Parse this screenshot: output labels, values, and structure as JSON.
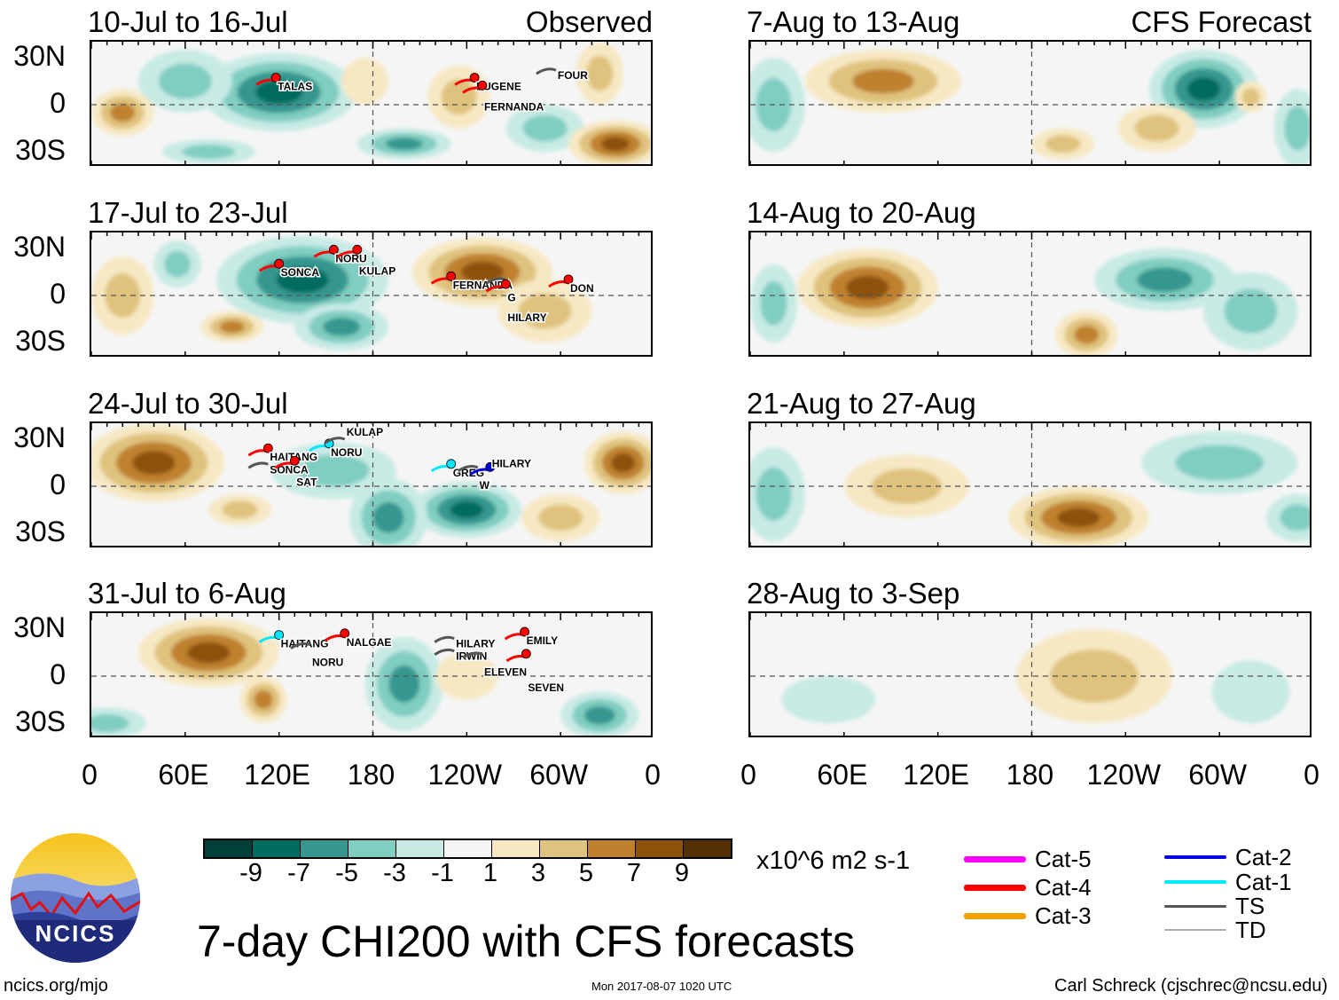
{
  "panels": [
    {
      "id": "p1",
      "title": "10-Jul to 16-Jul",
      "tag": "Observed",
      "storms": [
        {
          "name": "TALAS",
          "lon": 118,
          "lat": 15,
          "cat": 4
        },
        {
          "name": "EUGENE",
          "lon": 245,
          "lat": 15,
          "cat": 4
        },
        {
          "name": "FERNANDA",
          "lon": 250,
          "lat": 10,
          "cat": 4
        },
        {
          "name": "FOUR",
          "lon": 297,
          "lat": 22,
          "cat": 0
        }
      ]
    },
    {
      "id": "p2",
      "title": "17-Jul to 23-Jul",
      "tag": "",
      "storms": [
        {
          "name": "SONCA",
          "lon": 120,
          "lat": 18,
          "cat": 4
        },
        {
          "name": "NORU",
          "lon": 155,
          "lat": 27,
          "cat": 4
        },
        {
          "name": "KULAP",
          "lon": 170,
          "lat": 27,
          "cat": 4
        },
        {
          "name": "FERNANDA",
          "lon": 230,
          "lat": 10,
          "cat": 4
        },
        {
          "name": "G",
          "lon": 265,
          "lat": 10,
          "cat": 0
        },
        {
          "name": "HILARY",
          "lon": 265,
          "lat": 5,
          "cat": 4
        },
        {
          "name": "DON",
          "lon": 305,
          "lat": 8,
          "cat": 4
        }
      ]
    },
    {
      "id": "p3",
      "title": "24-Jul to 30-Jul",
      "tag": "",
      "storms": [
        {
          "name": "HAITANG",
          "lon": 113,
          "lat": 22,
          "cat": 4
        },
        {
          "name": "SONCA",
          "lon": 113,
          "lat": 14,
          "cat": 0
        },
        {
          "name": "SAT",
          "lon": 130,
          "lat": 14,
          "cat": 4
        },
        {
          "name": "NORU",
          "lon": 152,
          "lat": 25,
          "cat": 1
        },
        {
          "name": "KULAP",
          "lon": 162,
          "lat": 30,
          "cat": 0
        },
        {
          "name": "GREG",
          "lon": 230,
          "lat": 12,
          "cat": 1
        },
        {
          "name": "W",
          "lon": 247,
          "lat": 12,
          "cat": 0
        },
        {
          "name": "HILARY",
          "lon": 255,
          "lat": 10,
          "cat": 2
        }
      ]
    },
    {
      "id": "p4",
      "title": "31-Jul to 6-Aug",
      "tag": "",
      "storms": [
        {
          "name": "HAITANG",
          "lon": 120,
          "lat": 24,
          "cat": 1
        },
        {
          "name": "NORU",
          "lon": 140,
          "lat": 20,
          "cat": 0
        },
        {
          "name": "NALGAE",
          "lon": 162,
          "lat": 25,
          "cat": 4
        },
        {
          "name": "HILARY",
          "lon": 232,
          "lat": 24,
          "cat": 0
        },
        {
          "name": "IRWIN",
          "lon": 232,
          "lat": 16,
          "cat": 0
        },
        {
          "name": "ELEVEN",
          "lon": 250,
          "lat": 14,
          "cat": 0
        },
        {
          "name": "EMILY",
          "lon": 277,
          "lat": 26,
          "cat": 4
        },
        {
          "name": "SEVEN",
          "lon": 278,
          "lat": 12,
          "cat": 4
        }
      ]
    },
    {
      "id": "r1",
      "title": "7-Aug to 13-Aug",
      "tag": "CFS Forecast",
      "storms": []
    },
    {
      "id": "r2",
      "title": "14-Aug to 20-Aug",
      "tag": "",
      "storms": []
    },
    {
      "id": "r3",
      "title": "21-Aug to 27-Aug",
      "tag": "",
      "storms": []
    },
    {
      "id": "r4",
      "title": "28-Aug to 3-Sep",
      "tag": "",
      "storms": []
    }
  ],
  "lat_labels": [
    "30N",
    "0",
    "30S"
  ],
  "lon_labels": [
    "0",
    "60E",
    "120E",
    "180",
    "120W",
    "60W",
    "0"
  ],
  "colorbar": {
    "colors": [
      "#01403a",
      "#016c5f",
      "#35978f",
      "#80cdc1",
      "#c7eae5",
      "#f5f5f5",
      "#f6e8c3",
      "#dfc27d",
      "#bf812d",
      "#8c510a",
      "#543005"
    ],
    "ticks": [
      "-9",
      "-7",
      "-5",
      "-3",
      "-1",
      "1",
      "3",
      "5",
      "7",
      "9"
    ],
    "units": "x10^6 m2 s-1"
  },
  "legend": [
    {
      "label": "Cat-5",
      "color": "#ff00ff"
    },
    {
      "label": "Cat-4",
      "color": "#ff0000"
    },
    {
      "label": "Cat-3",
      "color": "#f0a000"
    },
    {
      "label": "Cat-2",
      "color": "#0000e0"
    },
    {
      "label": "Cat-1",
      "color": "#00e8ff"
    },
    {
      "label": "TS",
      "color": "#555555"
    },
    {
      "label": "TD",
      "color": "#aaaaaa"
    }
  ],
  "title": "7-day CHI200 with CFS forecasts",
  "logo_text": "NCICS",
  "footer": {
    "left": "ncics.org/mjo",
    "center": "Mon 2017-08-07 1020 UTC",
    "right": "Carl Schreck (cjschrec@ncsu.edu)"
  }
}
